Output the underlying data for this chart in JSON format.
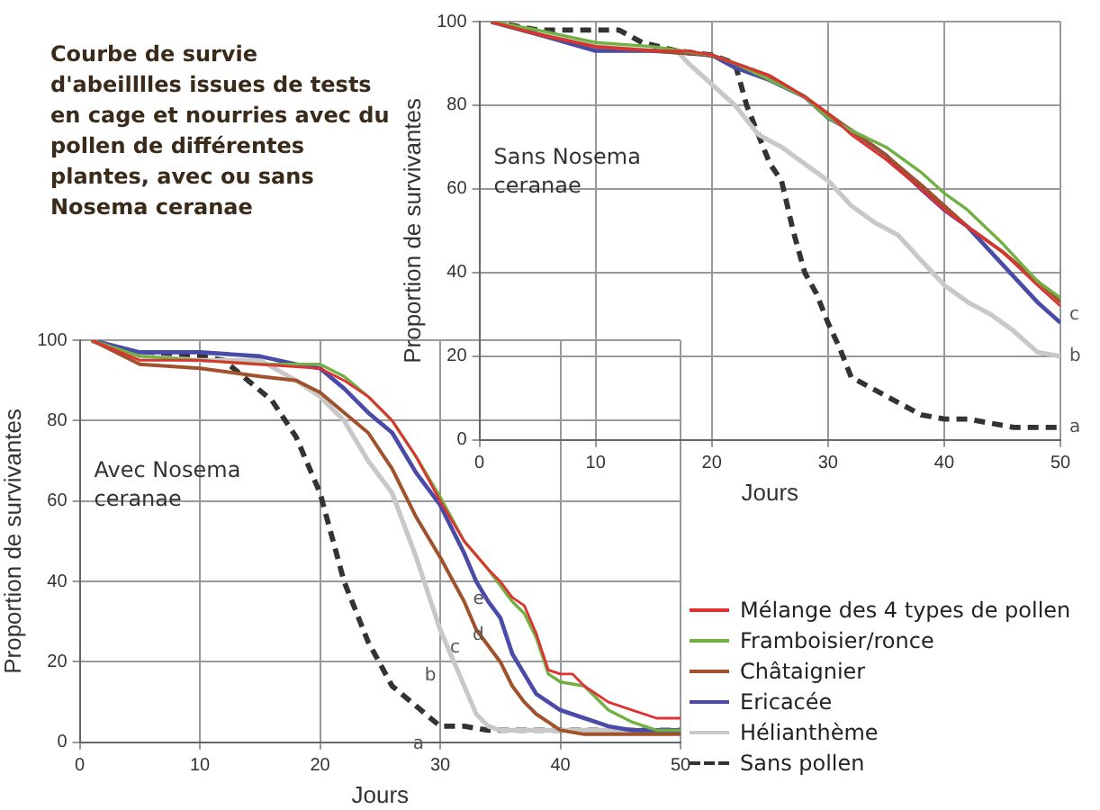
{
  "chart_data": [
    {
      "type": "line",
      "title": "Courbe de survie d'abeilllles issues de tests en cage et nourries avec du pollen de différentes plantes, avec ou sans Nosema ceranae",
      "xlabel": "Jours",
      "ylabel": "Proportion de survivantes",
      "xlim": [
        0,
        50
      ],
      "xticks": [
        0,
        10,
        20,
        30,
        40,
        50
      ],
      "ylim": [
        0,
        100
      ],
      "yticks": [
        0,
        20,
        40,
        60,
        80,
        100
      ],
      "grid": true,
      "legend": false,
      "marker": "none",
      "annotations": [
        "Sans Nosema ceranae",
        {
          "text": "c",
          "x": 50,
          "y": 30
        },
        {
          "text": "b",
          "x": 50,
          "y": 20
        },
        {
          "text": "a",
          "x": 50,
          "y": 3
        }
      ],
      "series": [
        {
          "color": "#e03030",
          "x": [
            1,
            5,
            10,
            15,
            18,
            20,
            22,
            25,
            28,
            30,
            32,
            35,
            38,
            40,
            42,
            45,
            48,
            50
          ],
          "values": [
            100,
            97,
            94,
            93,
            93,
            92,
            90,
            87,
            82,
            78,
            73,
            67,
            60,
            55,
            51,
            45,
            37,
            32
          ]
        },
        {
          "color": "#72b043",
          "x": [
            1,
            5,
            10,
            15,
            20,
            22,
            25,
            28,
            30,
            32,
            35,
            38,
            40,
            42,
            45,
            48,
            50
          ],
          "values": [
            100,
            98,
            95,
            94,
            92,
            90,
            86,
            82,
            77,
            74,
            70,
            64,
            59,
            55,
            47,
            38,
            34
          ]
        },
        {
          "color": "#a0522d",
          "x": [
            1,
            5,
            10,
            15,
            20,
            22,
            25,
            28,
            30,
            32,
            35,
            38,
            40,
            42,
            45,
            48,
            50
          ],
          "values": [
            100,
            97,
            94,
            93,
            92,
            90,
            87,
            82,
            78,
            74,
            68,
            61,
            56,
            51,
            45,
            38,
            33
          ]
        },
        {
          "color": "#4a4aa8",
          "x": [
            1,
            5,
            10,
            15,
            20,
            22,
            25,
            28,
            30,
            32,
            35,
            38,
            40,
            42,
            45,
            48,
            50
          ],
          "values": [
            100,
            97,
            93,
            93,
            92,
            89,
            86,
            82,
            77,
            74,
            68,
            60,
            55,
            51,
            42,
            33,
            28
          ]
        },
        {
          "color": "#c8c8c8",
          "x": [
            1,
            5,
            10,
            15,
            17,
            18,
            20,
            22,
            24,
            26,
            28,
            30,
            32,
            34,
            36,
            38,
            40,
            42,
            44,
            46,
            48,
            50
          ],
          "values": [
            100,
            97,
            94,
            93,
            93,
            90,
            85,
            80,
            73,
            70,
            66,
            62,
            56,
            52,
            49,
            43,
            37,
            33,
            30,
            26,
            21,
            20
          ]
        },
        {
          "color": "#333333",
          "line_style": "dashed",
          "x": [
            1,
            5,
            10,
            12,
            14,
            17,
            20,
            22,
            23,
            24,
            25,
            26,
            27,
            28,
            29,
            30,
            31,
            32,
            34,
            36,
            38,
            40,
            42,
            44,
            46,
            50
          ],
          "values": [
            100,
            98,
            98,
            98,
            95,
            93,
            92,
            90,
            80,
            73,
            66,
            62,
            50,
            40,
            35,
            28,
            22,
            15,
            12,
            9,
            6,
            5,
            5,
            4,
            3,
            3
          ]
        }
      ]
    },
    {
      "type": "line",
      "xlabel": "Jours",
      "ylabel": "Proportion de survivantes",
      "xlim": [
        0,
        50
      ],
      "xticks": [
        0,
        10,
        20,
        30,
        40,
        50
      ],
      "ylim": [
        0,
        100
      ],
      "yticks": [
        0,
        20,
        40,
        60,
        80,
        100
      ],
      "grid": true,
      "legend": "bottom right",
      "marker": "none",
      "annotations": [
        "Avec Nosema ceranae",
        {
          "text": "e",
          "x": 35,
          "y": 40
        },
        {
          "text": "d",
          "x": 35,
          "y": 31
        },
        {
          "text": "c",
          "x": 33,
          "y": 28
        },
        {
          "text": "b",
          "x": 31,
          "y": 21
        },
        {
          "text": "a",
          "x": 30,
          "y": 4
        }
      ],
      "series": [
        {
          "name": "Mélange des 4 types de pollen",
          "color": "#e03030",
          "x": [
            1,
            5,
            10,
            15,
            20,
            22,
            24,
            26,
            28,
            30,
            32,
            34,
            35,
            36,
            37,
            38,
            39,
            40,
            41,
            42,
            44,
            46,
            48,
            50
          ],
          "values": [
            100,
            95,
            95,
            94,
            93,
            90,
            86,
            80,
            71,
            60,
            50,
            43,
            40,
            36,
            34,
            27,
            18,
            17,
            17,
            14,
            10,
            8,
            6,
            6
          ]
        },
        {
          "name": "Framboisier/ronce",
          "color": "#72b043",
          "x": [
            1,
            5,
            10,
            15,
            20,
            22,
            24,
            26,
            28,
            30,
            32,
            34,
            35,
            36,
            37,
            38,
            39,
            40,
            42,
            44,
            46,
            48,
            50
          ],
          "values": [
            100,
            96,
            95,
            94,
            94,
            91,
            86,
            80,
            71,
            61,
            50,
            43,
            39,
            35,
            32,
            26,
            17,
            15,
            14,
            8,
            5,
            3,
            3
          ]
        },
        {
          "name": "Châtaignier",
          "color": "#a0522d",
          "x": [
            1,
            5,
            10,
            15,
            18,
            20,
            22,
            24,
            26,
            28,
            30,
            32,
            33,
            34,
            35,
            36,
            37,
            38,
            39,
            40,
            42,
            46,
            50
          ],
          "values": [
            100,
            94,
            93,
            91,
            90,
            87,
            82,
            77,
            68,
            56,
            46,
            35,
            28,
            24,
            20,
            14,
            10,
            7,
            5,
            3,
            2,
            2,
            2
          ]
        },
        {
          "name": "Ericacée",
          "color": "#4a4aa8",
          "x": [
            1,
            5,
            10,
            15,
            18,
            20,
            22,
            24,
            26,
            28,
            30,
            32,
            33,
            34,
            35,
            36,
            37,
            38,
            40,
            42,
            44,
            46,
            50
          ],
          "values": [
            100,
            97,
            97,
            96,
            94,
            93,
            88,
            82,
            77,
            67,
            59,
            47,
            40,
            35,
            31,
            22,
            17,
            12,
            8,
            6,
            4,
            3,
            3
          ]
        },
        {
          "name": "Hélianthème",
          "color": "#c8c8c8",
          "x": [
            1,
            5,
            10,
            15,
            18,
            20,
            22,
            24,
            26,
            28,
            30,
            32,
            33,
            34,
            35,
            40,
            50
          ],
          "values": [
            100,
            96,
            95,
            95,
            90,
            86,
            80,
            70,
            62,
            46,
            28,
            14,
            7,
            4,
            3,
            3,
            3
          ]
        },
        {
          "name": "Sans pollen",
          "color": "#333333",
          "line_style": "dashed",
          "x": [
            1,
            5,
            10,
            12,
            14,
            16,
            18,
            20,
            22,
            24,
            26,
            28,
            30,
            32,
            34,
            40,
            50
          ],
          "values": [
            100,
            96,
            96,
            95,
            90,
            85,
            76,
            62,
            40,
            25,
            14,
            9,
            4,
            4,
            3,
            3,
            3
          ]
        }
      ]
    }
  ]
}
